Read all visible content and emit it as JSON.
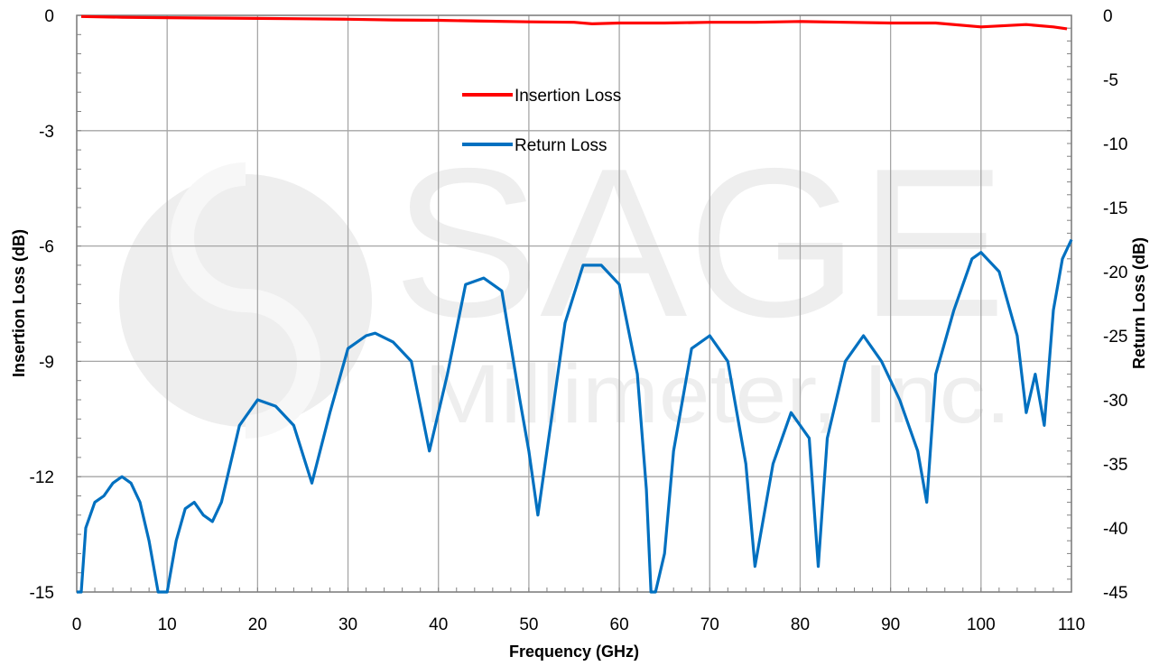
{
  "chart_data": {
    "type": "line",
    "xlabel": "Frequency (GHz)",
    "ylabel_left": "Insertion Loss (dB)",
    "ylabel_right": "Return Loss (dB)",
    "xlim": [
      0,
      110
    ],
    "ylim_left": [
      -15,
      0
    ],
    "ylim_right": [
      -45,
      0
    ],
    "x_ticks": [
      "0",
      "10",
      "20",
      "30",
      "40",
      "50",
      "60",
      "70",
      "80",
      "90",
      "100",
      "110"
    ],
    "y_left_ticks": [
      "0",
      "-3",
      "-6",
      "-9",
      "-12",
      "-15"
    ],
    "y_right_ticks": [
      "0",
      "-5",
      "-10",
      "-15",
      "-20",
      "-25",
      "-30",
      "-35",
      "-40",
      "-45"
    ],
    "grid": true,
    "legend_position": "upper-center",
    "watermark": {
      "brand": "SAGE",
      "sub": "Millimeter, Inc."
    },
    "series": [
      {
        "name": "Insertion Loss",
        "axis": "left",
        "color": "#ff0000",
        "x": [
          0.5,
          5,
          10,
          15,
          20,
          25,
          30,
          35,
          40,
          45,
          50,
          55,
          57,
          60,
          65,
          70,
          75,
          80,
          85,
          90,
          95,
          100,
          105,
          108,
          109.5
        ],
        "y": [
          -0.03,
          -0.05,
          -0.06,
          -0.07,
          -0.08,
          -0.09,
          -0.1,
          -0.12,
          -0.13,
          -0.15,
          -0.17,
          -0.18,
          -0.22,
          -0.2,
          -0.2,
          -0.18,
          -0.18,
          -0.16,
          -0.18,
          -0.2,
          -0.2,
          -0.3,
          -0.24,
          -0.3,
          -0.35
        ]
      },
      {
        "name": "Return Loss",
        "axis": "right",
        "color": "#0070c0",
        "x": [
          0,
          0.5,
          1,
          2,
          3,
          4,
          5,
          6,
          7,
          8,
          9,
          10,
          11,
          12,
          13,
          14,
          15,
          16,
          17,
          18,
          20,
          22,
          24,
          26,
          28,
          30,
          32,
          33,
          35,
          37,
          39,
          41,
          43,
          45,
          47,
          49,
          50,
          51,
          52,
          54,
          56,
          58,
          60,
          62,
          63,
          63.5,
          64,
          65,
          66,
          68,
          70,
          72,
          74,
          75,
          77,
          79,
          81,
          82,
          83,
          85,
          87,
          89,
          91,
          93,
          94,
          95,
          97,
          99,
          100,
          102,
          104,
          105,
          106,
          107,
          108,
          109,
          110
        ],
        "y": [
          -45,
          -45,
          -40,
          -38,
          -37.5,
          -36.5,
          -36,
          -36.5,
          -38,
          -41,
          -45,
          -45,
          -41,
          -38.5,
          -38,
          -39,
          -39.5,
          -38,
          -35,
          -32,
          -30,
          -30.5,
          -32,
          -36.5,
          -31,
          -26,
          -25,
          -24.8,
          -25.5,
          -27,
          -34,
          -28,
          -21,
          -20.5,
          -21.5,
          -30,
          -34,
          -39,
          -34,
          -24,
          -19.5,
          -19.5,
          -21,
          -28,
          -37,
          -45,
          -45,
          -42,
          -34,
          -26,
          -25,
          -27,
          -35,
          -43,
          -35,
          -31,
          -33,
          -43,
          -33,
          -27,
          -25,
          -27,
          -30,
          -34,
          -38,
          -28,
          -23,
          -19,
          -18.5,
          -20,
          -25,
          -31,
          -28,
          -32,
          -23,
          -19,
          -17.5
        ]
      }
    ]
  }
}
